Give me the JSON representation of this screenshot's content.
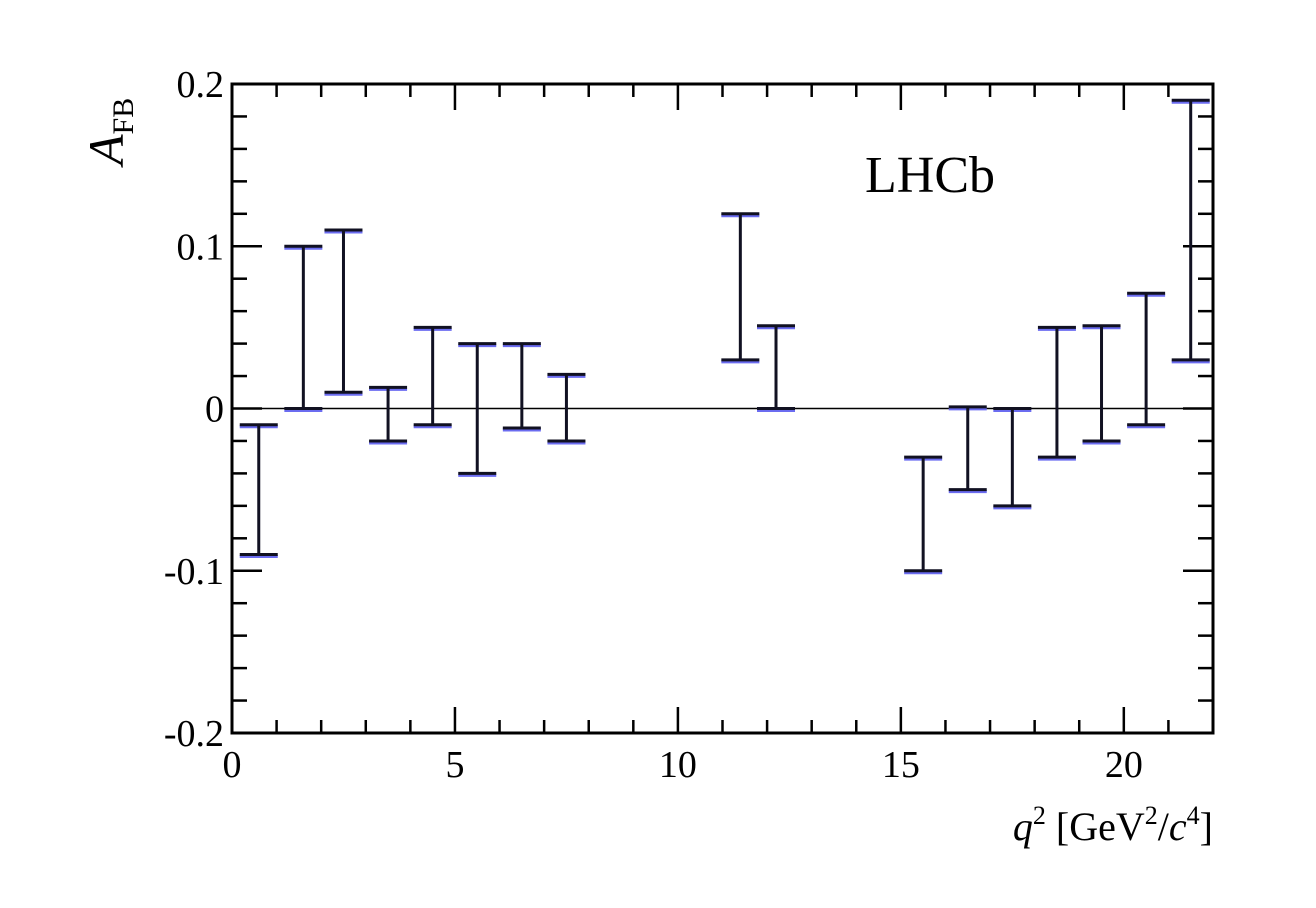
{
  "chart_data": {
    "type": "errorbar",
    "experiment_label": "LHCb",
    "xlim": [
      0,
      22
    ],
    "ylim": [
      -0.2,
      0.2
    ],
    "x_ticks": [
      "0",
      "5",
      "10",
      "15",
      "20"
    ],
    "y_ticks": [
      "-0.2",
      "-0.1",
      "0",
      "0.1",
      "0.2"
    ],
    "ylabel": {
      "symbol": "A",
      "subscript": "FB"
    },
    "xlabel": {
      "var": "q",
      "var_power": "2",
      "open": " [GeV",
      "gev_power": "2",
      "slash": "/",
      "unit_var": "c",
      "unit_power": "4",
      "close": "]"
    },
    "reference_line_y": 0,
    "colors": {
      "axis": "#000000",
      "bar": "#111122",
      "overlay": "#6b6cf0"
    },
    "series": [
      {
        "kind": "interval",
        "bins": [
          {
            "x": 0.6,
            "low": -0.09,
            "high": -0.01
          },
          {
            "x": 1.6,
            "low": 0.0,
            "high": 0.1
          },
          {
            "x": 2.5,
            "low": 0.01,
            "high": 0.11
          },
          {
            "x": 3.5,
            "low": -0.02,
            "high": 0.013
          },
          {
            "x": 4.5,
            "low": -0.01,
            "high": 0.05
          },
          {
            "x": 5.5,
            "low": -0.04,
            "high": 0.04
          },
          {
            "x": 6.5,
            "low": -0.012,
            "high": 0.04
          },
          {
            "x": 7.5,
            "low": -0.02,
            "high": 0.021
          },
          {
            "x": 11.4,
            "low": 0.03,
            "high": 0.12
          },
          {
            "x": 12.2,
            "low": 0.0,
            "high": 0.051
          },
          {
            "x": 15.5,
            "low": -0.1,
            "high": -0.03
          },
          {
            "x": 16.5,
            "low": -0.05,
            "high": 0.001
          },
          {
            "x": 17.5,
            "low": -0.06,
            "high": 0.0
          },
          {
            "x": 18.5,
            "low": -0.03,
            "high": 0.05
          },
          {
            "x": 19.5,
            "low": -0.02,
            "high": 0.051
          },
          {
            "x": 20.5,
            "low": -0.01,
            "high": 0.071
          },
          {
            "x": 21.5,
            "low": 0.03,
            "high": 0.19
          }
        ]
      }
    ]
  }
}
